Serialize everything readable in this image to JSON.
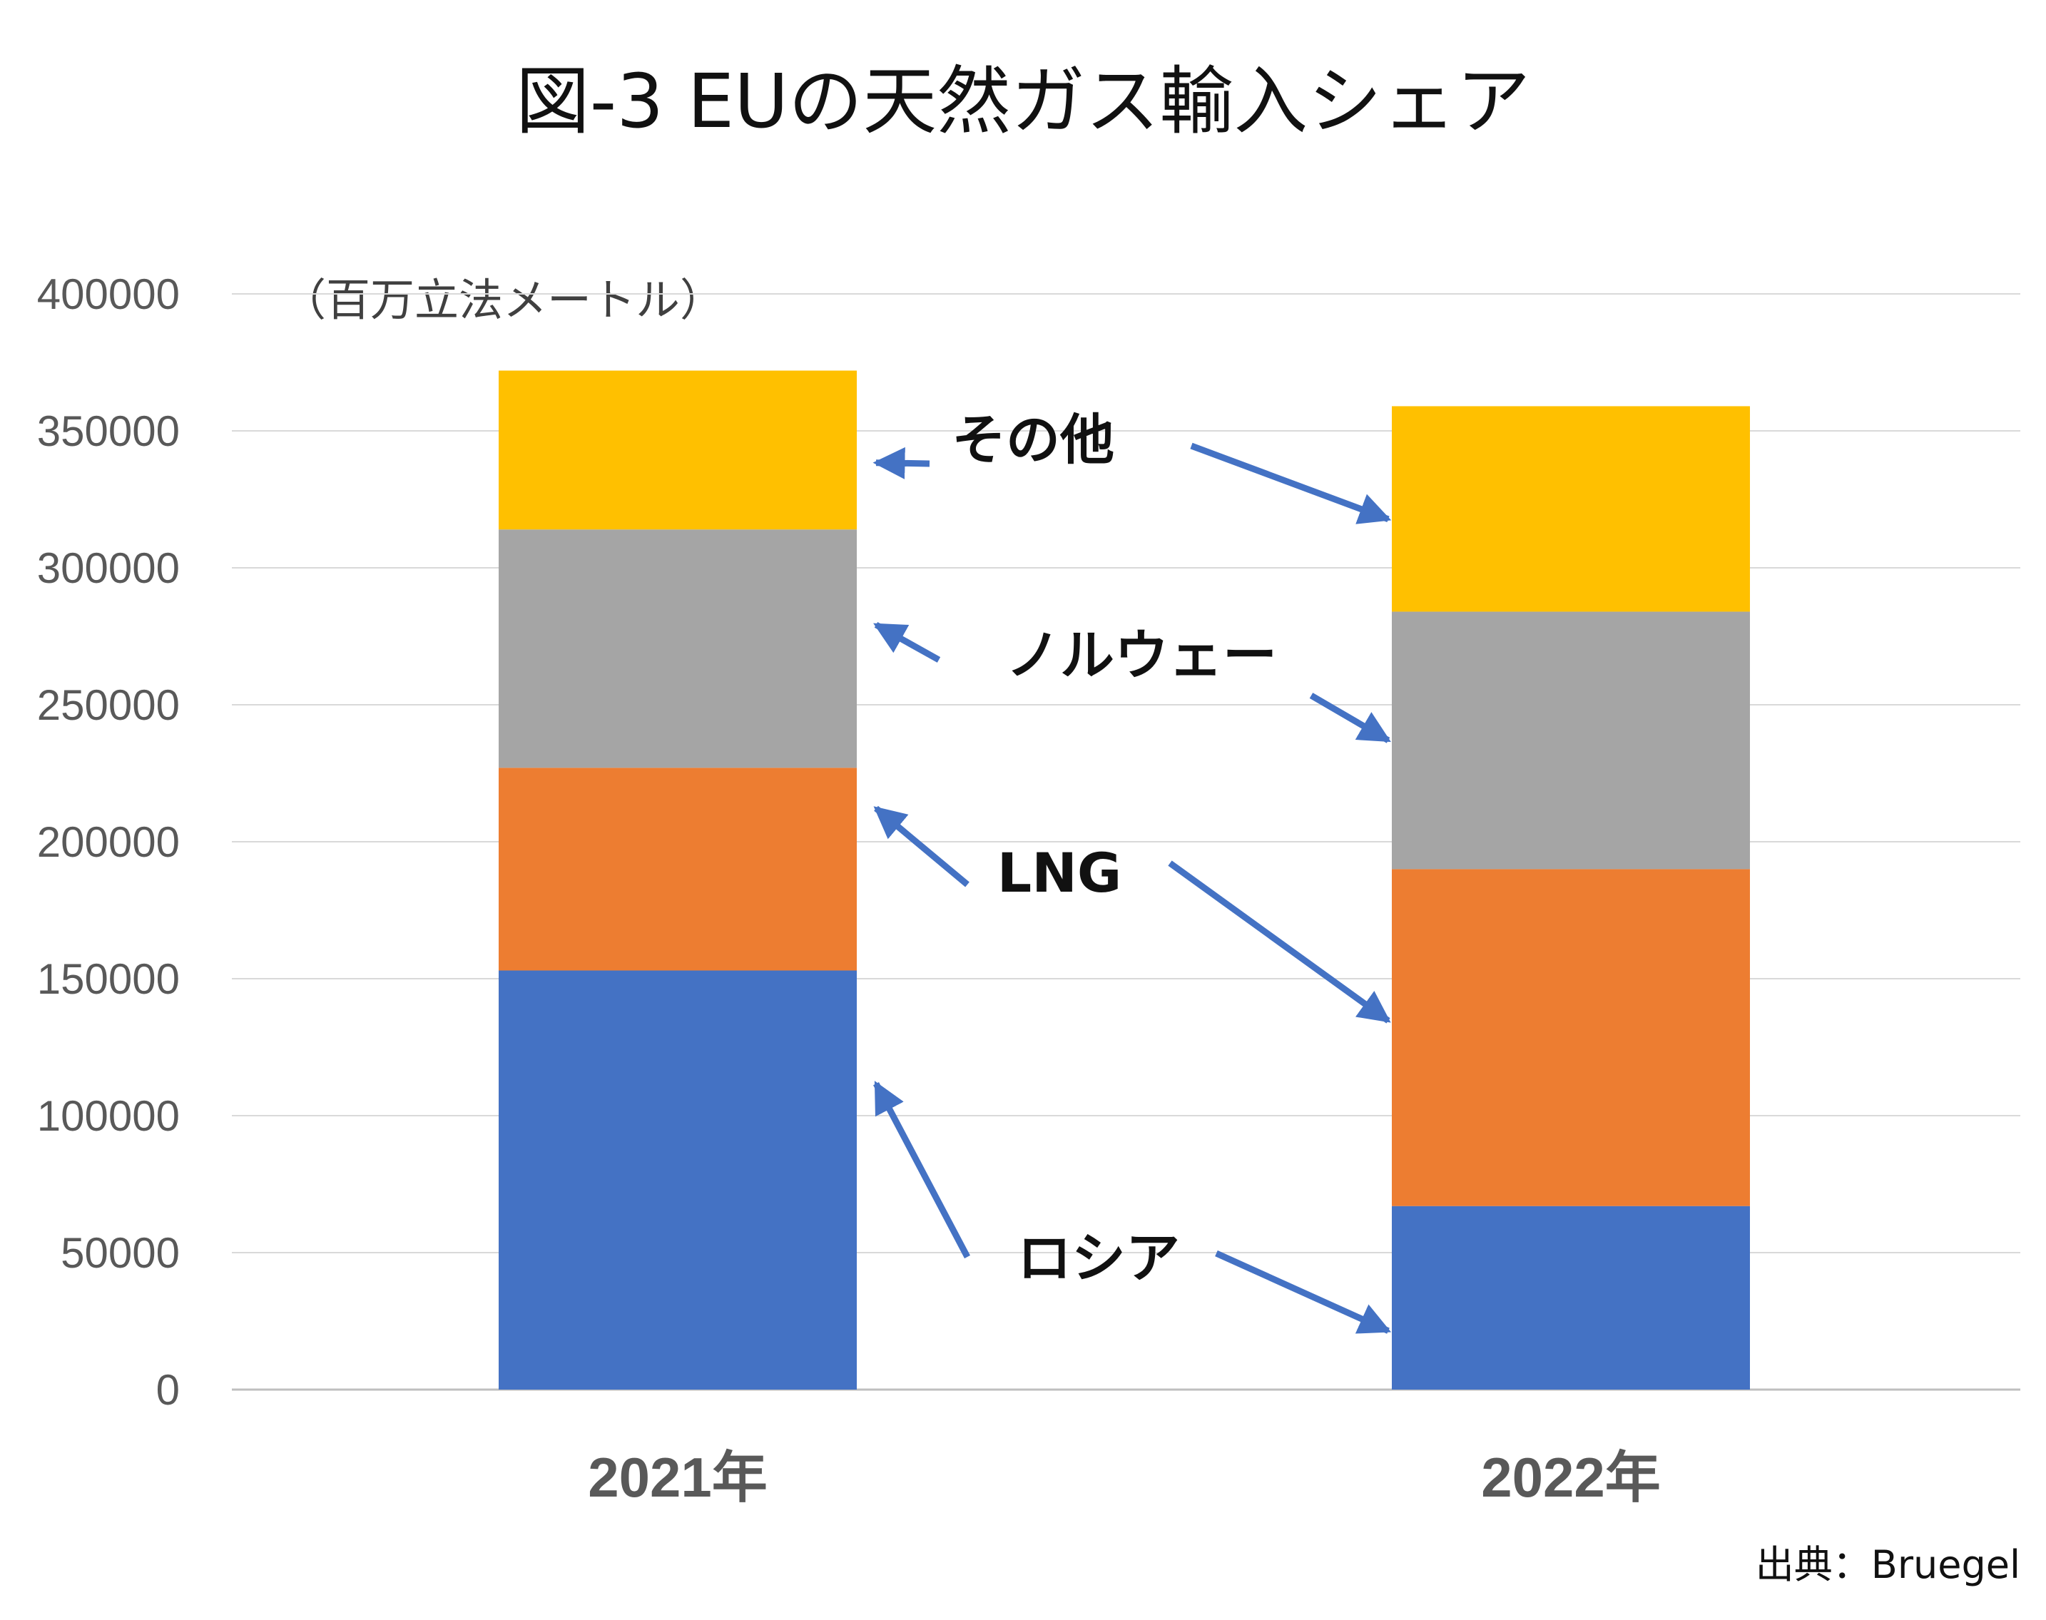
{
  "chart_data": {
    "type": "bar",
    "stacked": true,
    "title": "図-3  EUの天然ガス輸入シェア",
    "unit_label": "（百万立法メートル）",
    "categories": [
      "2021年",
      "2022年"
    ],
    "ylim": [
      0,
      400000
    ],
    "yticks": [
      0,
      50000,
      100000,
      150000,
      200000,
      250000,
      300000,
      350000,
      400000
    ],
    "grid": true,
    "series": [
      {
        "name": "ロシア",
        "color": "#4472C4",
        "values": [
          153000,
          67000
        ]
      },
      {
        "name": "LNG",
        "color": "#ED7D31",
        "values": [
          74000,
          123000
        ]
      },
      {
        "name": "ノルウェー",
        "color": "#A5A5A5",
        "values": [
          87000,
          94000
        ]
      },
      {
        "name": "その他",
        "color": "#FFC000",
        "values": [
          58000,
          75000
        ]
      }
    ],
    "source": "出典：Bruegel",
    "annotation_color": "#4472C4"
  }
}
